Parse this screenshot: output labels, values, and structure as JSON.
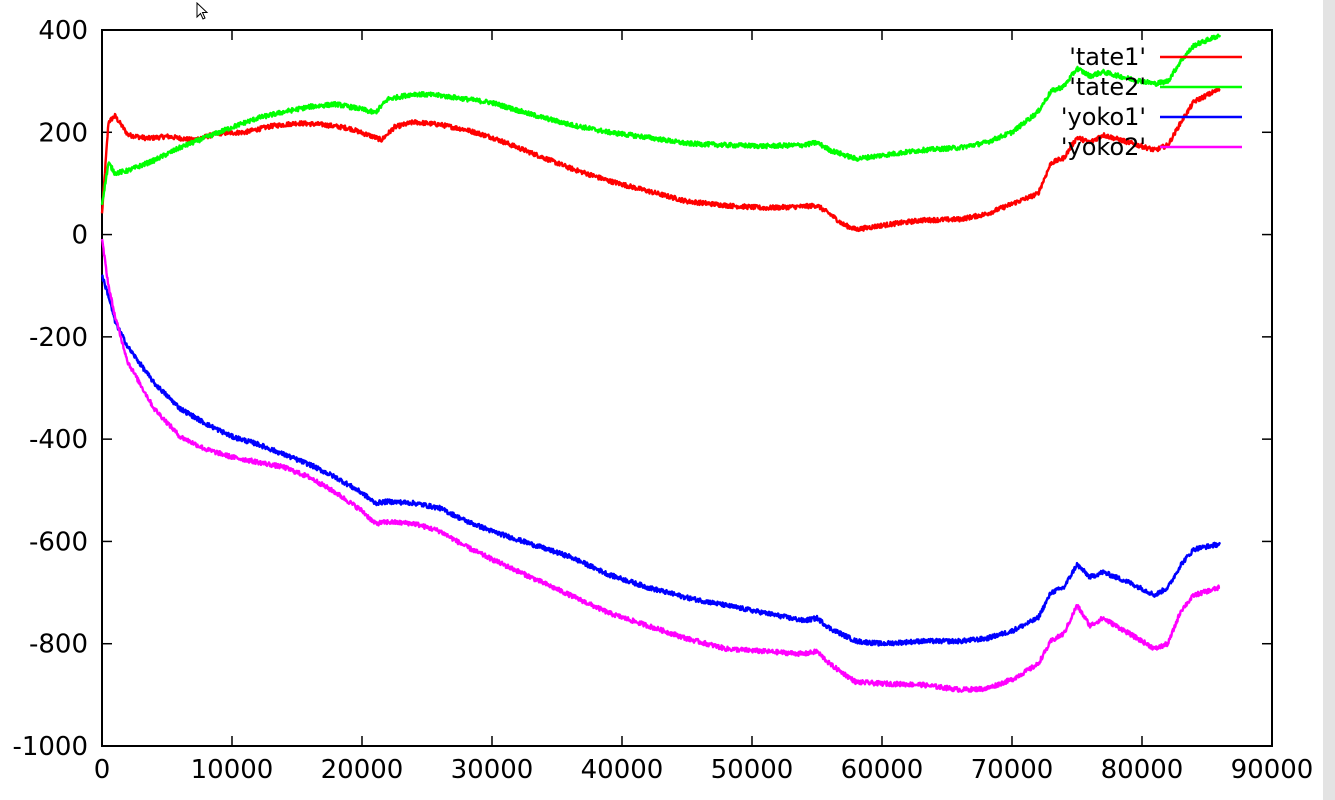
{
  "chart_data": {
    "type": "line",
    "title": "",
    "xlabel": "",
    "ylabel": "",
    "xlim": [
      0,
      90000
    ],
    "ylim": [
      -1000,
      400
    ],
    "x_ticks": [
      0,
      10000,
      20000,
      30000,
      40000,
      50000,
      60000,
      70000,
      80000,
      90000
    ],
    "y_ticks": [
      -1000,
      -800,
      -600,
      -400,
      -200,
      0,
      200,
      400
    ],
    "grid": false,
    "legend_position": "top-right",
    "series": [
      {
        "name": "'tate1'",
        "color": "#ff0000",
        "points": [
          [
            0,
            40
          ],
          [
            500,
            220
          ],
          [
            1000,
            232
          ],
          [
            2000,
            195
          ],
          [
            3500,
            188
          ],
          [
            5000,
            192
          ],
          [
            7000,
            185
          ],
          [
            9000,
            198
          ],
          [
            11000,
            200
          ],
          [
            13000,
            212
          ],
          [
            15000,
            218
          ],
          [
            17000,
            215
          ],
          [
            19000,
            208
          ],
          [
            21000,
            190
          ],
          [
            21500,
            185
          ],
          [
            22500,
            210
          ],
          [
            24000,
            220
          ],
          [
            26000,
            215
          ],
          [
            28000,
            205
          ],
          [
            30000,
            190
          ],
          [
            33000,
            160
          ],
          [
            36000,
            130
          ],
          [
            39000,
            105
          ],
          [
            42000,
            85
          ],
          [
            45000,
            65
          ],
          [
            48000,
            57
          ],
          [
            51000,
            52
          ],
          [
            54000,
            55
          ],
          [
            55000,
            57
          ],
          [
            56000,
            40
          ],
          [
            57000,
            20
          ],
          [
            58000,
            10
          ],
          [
            60000,
            18
          ],
          [
            63000,
            28
          ],
          [
            66000,
            30
          ],
          [
            68000,
            40
          ],
          [
            70000,
            60
          ],
          [
            72000,
            80
          ],
          [
            73000,
            140
          ],
          [
            74000,
            150
          ],
          [
            75000,
            190
          ],
          [
            76000,
            180
          ],
          [
            77000,
            195
          ],
          [
            79000,
            180
          ],
          [
            81000,
            165
          ],
          [
            82000,
            175
          ],
          [
            83000,
            220
          ],
          [
            84000,
            260
          ],
          [
            86000,
            285
          ]
        ]
      },
      {
        "name": "'tate2'",
        "color": "#00ff00",
        "points": [
          [
            0,
            60
          ],
          [
            500,
            140
          ],
          [
            1000,
            120
          ],
          [
            2000,
            125
          ],
          [
            4000,
            145
          ],
          [
            6000,
            170
          ],
          [
            8000,
            190
          ],
          [
            10000,
            210
          ],
          [
            12000,
            228
          ],
          [
            14000,
            240
          ],
          [
            16000,
            250
          ],
          [
            18000,
            255
          ],
          [
            20000,
            245
          ],
          [
            21000,
            238
          ],
          [
            22000,
            265
          ],
          [
            24000,
            275
          ],
          [
            26000,
            272
          ],
          [
            28000,
            265
          ],
          [
            30000,
            258
          ],
          [
            33000,
            235
          ],
          [
            36000,
            215
          ],
          [
            39000,
            200
          ],
          [
            42000,
            190
          ],
          [
            45000,
            178
          ],
          [
            48000,
            175
          ],
          [
            51000,
            173
          ],
          [
            54000,
            175
          ],
          [
            55000,
            180
          ],
          [
            56000,
            165
          ],
          [
            58000,
            148
          ],
          [
            60000,
            155
          ],
          [
            63000,
            165
          ],
          [
            66000,
            170
          ],
          [
            68000,
            180
          ],
          [
            70000,
            200
          ],
          [
            72000,
            240
          ],
          [
            73000,
            280
          ],
          [
            74000,
            290
          ],
          [
            75000,
            325
          ],
          [
            76000,
            310
          ],
          [
            77000,
            318
          ],
          [
            79000,
            305
          ],
          [
            81000,
            295
          ],
          [
            82000,
            300
          ],
          [
            83000,
            340
          ],
          [
            84000,
            370
          ],
          [
            86000,
            390
          ]
        ]
      },
      {
        "name": "'yoko1'",
        "color": "#0000ff",
        "points": [
          [
            0,
            -80
          ],
          [
            500,
            -120
          ],
          [
            1000,
            -170
          ],
          [
            2000,
            -220
          ],
          [
            4000,
            -290
          ],
          [
            6000,
            -340
          ],
          [
            8000,
            -370
          ],
          [
            10000,
            -395
          ],
          [
            12000,
            -410
          ],
          [
            14000,
            -430
          ],
          [
            16000,
            -450
          ],
          [
            18000,
            -475
          ],
          [
            20000,
            -505
          ],
          [
            21000,
            -525
          ],
          [
            22000,
            -522
          ],
          [
            24000,
            -525
          ],
          [
            26000,
            -535
          ],
          [
            28000,
            -560
          ],
          [
            30000,
            -580
          ],
          [
            33000,
            -605
          ],
          [
            36000,
            -630
          ],
          [
            39000,
            -665
          ],
          [
            42000,
            -690
          ],
          [
            45000,
            -710
          ],
          [
            48000,
            -725
          ],
          [
            51000,
            -740
          ],
          [
            54000,
            -755
          ],
          [
            55000,
            -750
          ],
          [
            56000,
            -770
          ],
          [
            58000,
            -795
          ],
          [
            60000,
            -800
          ],
          [
            63000,
            -795
          ],
          [
            66000,
            -795
          ],
          [
            68000,
            -790
          ],
          [
            70000,
            -775
          ],
          [
            72000,
            -750
          ],
          [
            73000,
            -700
          ],
          [
            74000,
            -690
          ],
          [
            75000,
            -645
          ],
          [
            76000,
            -670
          ],
          [
            77000,
            -660
          ],
          [
            79000,
            -680
          ],
          [
            81000,
            -705
          ],
          [
            82000,
            -690
          ],
          [
            83000,
            -645
          ],
          [
            84000,
            -615
          ],
          [
            86000,
            -605
          ]
        ]
      },
      {
        "name": "'yoko2'",
        "color": "#ff00ff",
        "points": [
          [
            0,
            -10
          ],
          [
            500,
            -100
          ],
          [
            1000,
            -160
          ],
          [
            2000,
            -250
          ],
          [
            4000,
            -340
          ],
          [
            6000,
            -395
          ],
          [
            8000,
            -420
          ],
          [
            10000,
            -435
          ],
          [
            12000,
            -445
          ],
          [
            14000,
            -455
          ],
          [
            16000,
            -475
          ],
          [
            18000,
            -505
          ],
          [
            20000,
            -540
          ],
          [
            21000,
            -565
          ],
          [
            22000,
            -562
          ],
          [
            24000,
            -565
          ],
          [
            26000,
            -580
          ],
          [
            28000,
            -610
          ],
          [
            30000,
            -635
          ],
          [
            33000,
            -670
          ],
          [
            36000,
            -705
          ],
          [
            39000,
            -740
          ],
          [
            42000,
            -765
          ],
          [
            45000,
            -790
          ],
          [
            48000,
            -810
          ],
          [
            51000,
            -815
          ],
          [
            54000,
            -820
          ],
          [
            55000,
            -815
          ],
          [
            56000,
            -840
          ],
          [
            58000,
            -875
          ],
          [
            60000,
            -878
          ],
          [
            63000,
            -880
          ],
          [
            66000,
            -890
          ],
          [
            68000,
            -888
          ],
          [
            70000,
            -870
          ],
          [
            72000,
            -840
          ],
          [
            73000,
            -795
          ],
          [
            74000,
            -780
          ],
          [
            75000,
            -725
          ],
          [
            76000,
            -765
          ],
          [
            77000,
            -750
          ],
          [
            79000,
            -780
          ],
          [
            81000,
            -810
          ],
          [
            82000,
            -800
          ],
          [
            83000,
            -735
          ],
          [
            84000,
            -705
          ],
          [
            86000,
            -690
          ]
        ]
      }
    ]
  }
}
